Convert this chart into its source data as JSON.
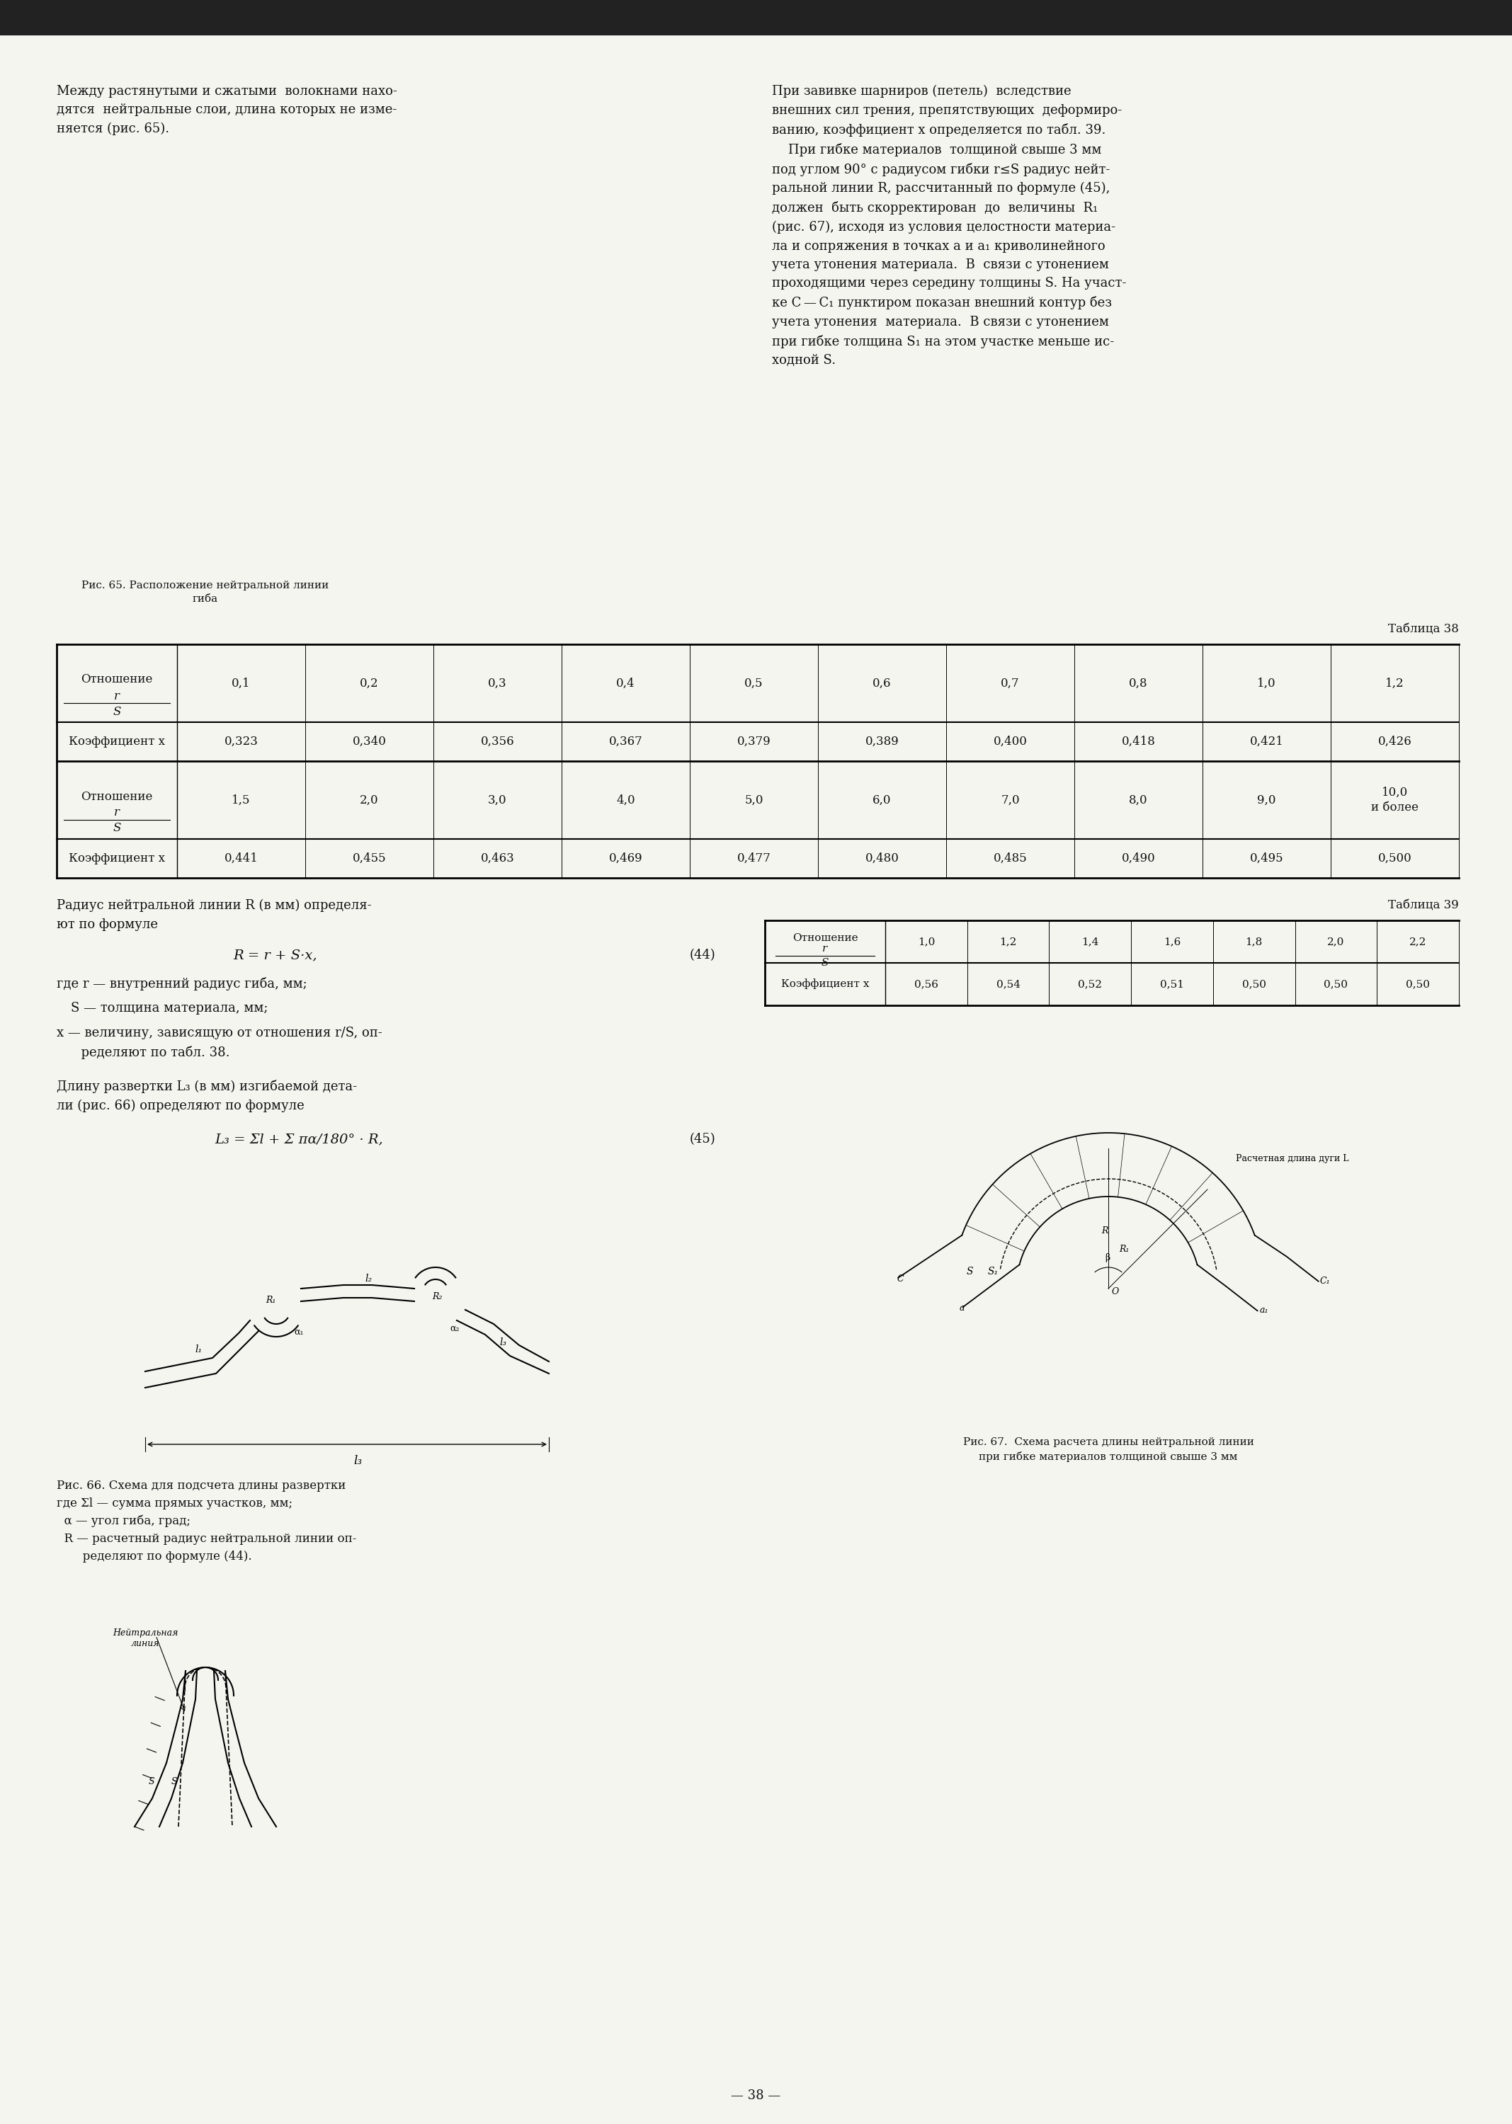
{
  "page_bg": "#f5f5f0",
  "text_color": "#111111",
  "title_38": "Таблица 38",
  "title_39": "Таблица 39",
  "page_number": "— 38 —",
  "left_col_text_1": "Между растянутыми и сжатыми  волокнами нахо-\nдятся  нейтральные слои, длина которых не изме-\nняется (рис. 65).",
  "fig65_caption": "Рис. 65. Расположение нейтральной линии\nгиба",
  "right_col_text_1": "При завивке шарниров (петель)  вследствие\nвнешних сил трения, препятствующих  деформиро-\nванию, коэффициент x определяется по табл. 39.\n   При гибке материалов  толщиной свыше 3 мм\nпод углом 90° с радиусом гибки r≤S радиус нейт-\nральной линии R, рассчитанный по формуле (45),\nдолжен  быть скорректирован  до  величины  R₁\n(рис. 67), исходя из условия целостности материа-\nла и сопряжения в точках a и a₁ криволинейного\nучета утонения материала.  В  связи с утонением\nпроходящими через середину толщины S. На участ-\nке C — C₁ пунктиром показан внешний контур без\nучета утонения  материала.  В связи с утонением\nпри гибке толщина S₁ на этом участке меньше ис-\nходной S.",
  "table38_row1_header": "Отношение",
  "table38_row1_frac": "r\nS",
  "table38_row1_vals": [
    "0,1",
    "0,2",
    "0,3",
    "0,4",
    "0,5",
    "0,6",
    "0,7",
    "0,8",
    "1,0",
    "1,2"
  ],
  "table38_row2_header": "Коэффициент x",
  "table38_row2_vals": [
    "0,323",
    "0,340",
    "0,356",
    "0,367",
    "0,379",
    "0,389",
    "0,400",
    "0,418",
    "0,421",
    "0,426"
  ],
  "table38_row3_header": "Отношение",
  "table38_row3_frac": "r\nS",
  "table38_row3_vals": [
    "1,5",
    "2,0",
    "3,0",
    "4,0",
    "5,0",
    "6,0",
    "7,0",
    "8,0",
    "9,0",
    "10,0\nи более"
  ],
  "table38_row4_header": "Коэффициент x",
  "table38_row4_vals": [
    "0,441",
    "0,455",
    "0,463",
    "0,469",
    "0,477",
    "0,480",
    "0,485",
    "0,490",
    "0,495",
    "0,500"
  ],
  "formula_text_1": "Радиус нейтральной линии R (в мм) определя-\nют по формуле",
  "formula_44": "R = r + S·x,",
  "formula_44_num": "(44)",
  "formula_desc_1": "где r — внутренний радиус гиба, мм;",
  "formula_desc_2": "S — толщина материала, мм;",
  "formula_desc_3": "x — величину, зависящую от отношения r/S, оп-\n      ределяют по табл. 38.",
  "formula_text_2": "Длину развертки L₃ (в мм) изгибаемой дета-\nли (рис. 66) определяют по формуле",
  "formula_45": "L₃ = Σl + Σ πα/180° · R,",
  "formula_45_num": "(45)",
  "fig66_caption": "Рис. 66. Схема для подсчета длины развертки\nгде Σl — сумма прямых участков, мм;\nα — угол гиба, град;\nR — расчетный радиус нейтральной линии оп-\n      ределяют по формуле (44).",
  "table39_row1_header": "Отношение r/S",
  "table39_row1_vals": [
    "1,0",
    "1,2",
    "1,4",
    "1,6",
    "1,8",
    "2,0",
    "2,2"
  ],
  "table39_row2_header": "Коэффициент x",
  "table39_row2_vals": [
    "0,56",
    "0,54",
    "0,52",
    "0,51",
    "0,50",
    "0,50",
    "0,50"
  ],
  "fig67_caption": "Рис. 67.  Схема расчета длины нейтральной линии\nпри гибке материалов толщиной свыше 3 мм"
}
